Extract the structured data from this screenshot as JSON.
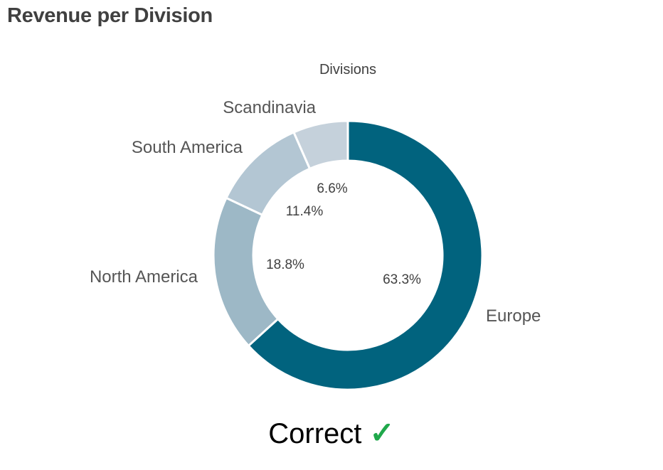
{
  "title": "Revenue per Division",
  "chart_data": {
    "type": "pie",
    "donut": true,
    "legend_title": "Divisions",
    "unit": "%",
    "slices": [
      {
        "label": "Europe",
        "value": 63.3,
        "value_label": "63.3%",
        "color": "#01637E"
      },
      {
        "label": "North America",
        "value": 18.8,
        "value_label": "18.8%",
        "color": "#9DB8C6"
      },
      {
        "label": "South America",
        "value": 11.4,
        "value_label": "11.4%",
        "color": "#B3C6D3"
      },
      {
        "label": "Scandinavia",
        "value": 6.6,
        "value_label": "6.6%",
        "color": "#C5D1DB"
      }
    ]
  },
  "footer": {
    "text": "Correct",
    "check_glyph": "✓",
    "check_color": "#1FA84B"
  }
}
